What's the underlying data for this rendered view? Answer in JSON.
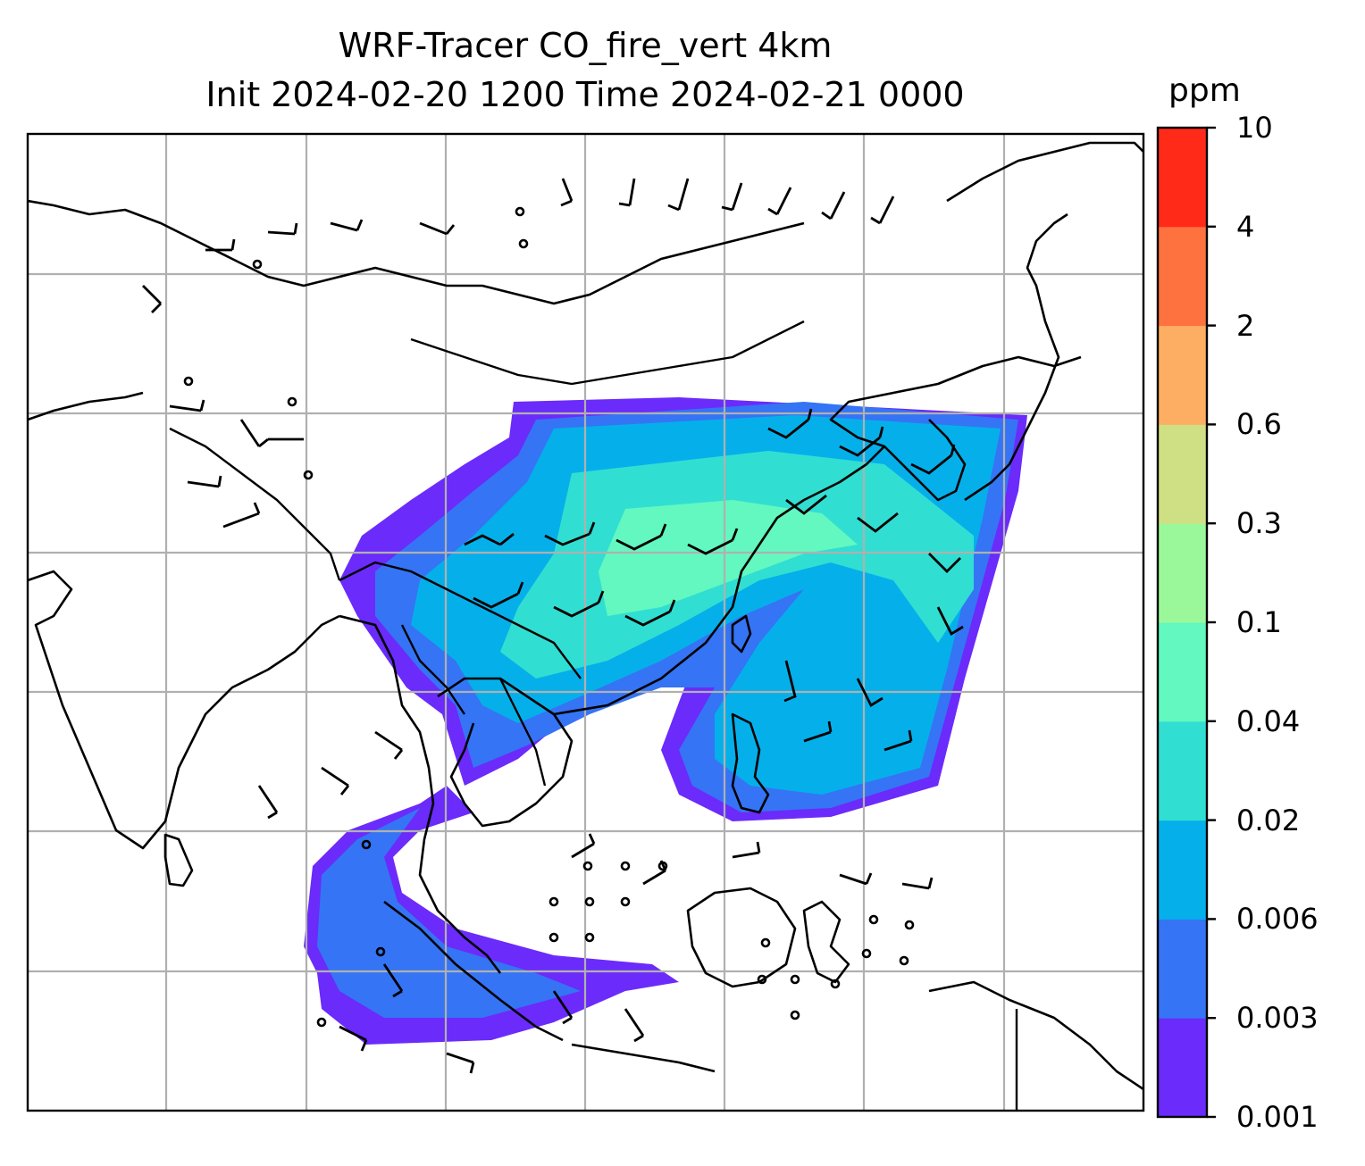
{
  "title": {
    "line1": "WRF-Tracer CO_fire_vert 4km",
    "line2": "Init 2024-02-20 1200 Time 2024-02-21 0000"
  },
  "colorbar": {
    "units": "ppm",
    "levels": [
      "0.001",
      "0.003",
      "0.006",
      "0.02",
      "0.04",
      "0.1",
      "0.3",
      "0.6",
      "2",
      "4",
      "10"
    ],
    "colors": [
      "#6b2bfa",
      "#3574f5",
      "#05b0ea",
      "#31dfd2",
      "#62f8c0",
      "#9bf89a",
      "#cfe084",
      "#feae63",
      "#fe7240",
      "#ff2a17"
    ]
  },
  "map": {
    "layers": [
      "coastlines",
      "country-borders",
      "lat-lon-gridlines",
      "co-tracer-contours",
      "wind-barbs"
    ],
    "gridline_color": "#b0b0b0",
    "coastline_color": "#000000"
  }
}
